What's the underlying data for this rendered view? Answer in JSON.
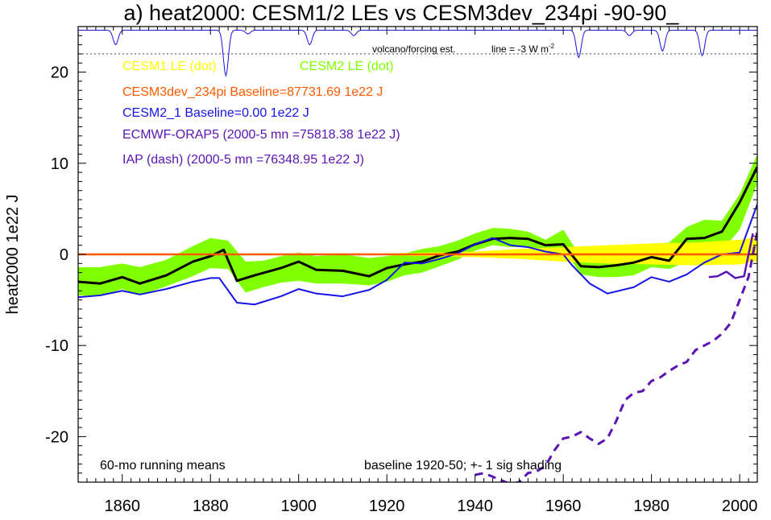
{
  "chart_data": {
    "type": "line",
    "title": "a) heat2000: CESM1/2 LEs vs CESM3dev_234pi -90-90_",
    "ylabel": "heat2000 1e22 J",
    "xlabel": "",
    "xlim": [
      1850,
      2004
    ],
    "ylim": [
      -25,
      25
    ],
    "x_ticks": [
      "1860",
      "1880",
      "1900",
      "1920",
      "1940",
      "1960",
      "1980",
      "2000"
    ],
    "y_ticks": [
      "20",
      "10",
      "0",
      "-10",
      "-20"
    ],
    "grid": false,
    "legend_entries": [
      {
        "label": "CESM1 LE (dot)",
        "color": "#ffff00"
      },
      {
        "label": "CESM2 LE (dot)",
        "color": "#80ff00"
      },
      {
        "label": "CESM3dev_234pi Baseline=87731.69 1e22 J",
        "color": "#ff5a00"
      },
      {
        "label": "CESM2_1 Baseline=0.00 1e22 J",
        "color": "#1414e6"
      },
      {
        "label": "ECMWF-ORAP5 (2000-5 mn =75818.38 1e22 J)",
        "color": "#5a14b4"
      },
      {
        "label": "IAP (dash) (2000-5 mn =76348.95 1e22 J)",
        "color": "#5a14b4"
      }
    ],
    "annotations": {
      "volcano_label": "volcano/forcing est.",
      "line_label": "line = -3 W m",
      "line_label_sup": "-2",
      "running_means": "60-mo running means",
      "baseline_note": "baseline 1920-50; +- 1 sig shading"
    },
    "volcano_ref_y": 22,
    "series": [
      {
        "name": "CESM2 LE (dot)",
        "role": "band",
        "color": "#80ff00",
        "x": [
          1850,
          1855,
          1860,
          1864,
          1870,
          1876,
          1880,
          1884,
          1888,
          1892,
          1896,
          1900,
          1904,
          1910,
          1916,
          1920,
          1924,
          1928,
          1932,
          1936,
          1940,
          1944,
          1948,
          1952,
          1956,
          1960,
          1964,
          1968,
          1972,
          1976,
          1980,
          1984,
          1988,
          1992,
          1996,
          2000,
          2004
        ],
        "lower": [
          -4.5,
          -4.6,
          -3.8,
          -4.5,
          -3.5,
          -2.4,
          -1.5,
          -1.6,
          -4.2,
          -3.6,
          -3.1,
          -2.9,
          -3.2,
          -3.2,
          -3.4,
          -3.0,
          -2.3,
          -2.0,
          -1.3,
          -0.6,
          0.4,
          1.0,
          0.8,
          0.8,
          0.6,
          0.6,
          -2.2,
          -2.5,
          -2.5,
          -2.3,
          -1.4,
          -1.6,
          -0.8,
          0.2,
          0.4,
          2.7,
          7.8
        ],
        "upper": [
          -1.4,
          -1.4,
          -1.0,
          -1.4,
          -0.6,
          0.9,
          1.8,
          1.5,
          -0.8,
          -0.7,
          -0.2,
          0.2,
          -0.2,
          0.0,
          -0.4,
          -0.2,
          0.1,
          0.6,
          0.9,
          1.5,
          2.3,
          2.9,
          2.8,
          2.5,
          1.6,
          2.7,
          -0.3,
          -0.2,
          0.1,
          0.1,
          1.1,
          1.3,
          3.0,
          3.8,
          3.7,
          6.6,
          11.0
        ]
      },
      {
        "name": "CESM1 LE (dot)",
        "role": "band",
        "color": "#ffff00",
        "x": [
          1920,
          1930,
          1940,
          1950,
          1960,
          1970,
          1980,
          1990,
          2000,
          2004
        ],
        "lower": [
          -0.1,
          -0.2,
          -0.3,
          -0.5,
          -0.8,
          -1.0,
          -1.1,
          -1.2,
          -1.1,
          -0.7
        ],
        "upper": [
          0.1,
          0.2,
          0.3,
          0.6,
          0.8,
          1.0,
          1.2,
          1.3,
          1.6,
          1.9
        ]
      },
      {
        "name": "CESM2 LE mean",
        "role": "line",
        "color": "#000000",
        "width": 3,
        "dash": "",
        "x": [
          1850,
          1855,
          1860,
          1864,
          1870,
          1876,
          1880,
          1883,
          1886,
          1890,
          1896,
          1900,
          1904,
          1910,
          1916,
          1920,
          1924,
          1928,
          1932,
          1936,
          1940,
          1944,
          1948,
          1952,
          1956,
          1960,
          1964,
          1968,
          1972,
          1976,
          1980,
          1984,
          1988,
          1992,
          1996,
          2000,
          2004
        ],
        "y": [
          -3.0,
          -3.2,
          -2.5,
          -3.2,
          -2.3,
          -0.8,
          -0.2,
          0.5,
          -2.9,
          -2.3,
          -1.5,
          -0.8,
          -1.7,
          -1.8,
          -2.4,
          -1.5,
          -1.1,
          -0.8,
          -0.1,
          0.3,
          1.1,
          1.7,
          1.8,
          1.7,
          1.0,
          1.1,
          -1.3,
          -1.4,
          -1.2,
          -0.9,
          -0.3,
          -0.7,
          1.7,
          1.8,
          2.5,
          5.7,
          9.6
        ]
      },
      {
        "name": "CESM2_1",
        "role": "line",
        "color": "#1414e6",
        "width": 2,
        "dash": "",
        "x": [
          1850,
          1855,
          1860,
          1864,
          1870,
          1876,
          1880,
          1882,
          1886,
          1890,
          1896,
          1900,
          1904,
          1910,
          1916,
          1920,
          1924,
          1928,
          1932,
          1936,
          1940,
          1944,
          1948,
          1952,
          1956,
          1960,
          1962,
          1966,
          1970,
          1976,
          1980,
          1984,
          1988,
          1992,
          1996,
          2000,
          2004
        ],
        "y": [
          -4.7,
          -4.5,
          -4.0,
          -4.4,
          -3.8,
          -3.0,
          -2.6,
          -2.6,
          -5.3,
          -5.5,
          -4.6,
          -3.8,
          -4.3,
          -4.6,
          -3.9,
          -2.8,
          -0.9,
          -1.0,
          -0.5,
          0.1,
          1.1,
          1.8,
          1.0,
          0.8,
          0.3,
          0.0,
          -1.2,
          -3.2,
          -4.3,
          -3.6,
          -2.5,
          -3.0,
          -2.2,
          -0.9,
          0.0,
          0.2,
          5.5
        ]
      },
      {
        "name": "CESM3dev_234pi",
        "role": "line",
        "color": "#ff5a00",
        "width": 2.5,
        "dash": "",
        "x": [
          1850,
          2004
        ],
        "y": [
          0.0,
          0.0
        ]
      },
      {
        "name": "ECMWF-ORAP5",
        "role": "line",
        "color": "#5a14b4",
        "width": 2.5,
        "dash": "",
        "x": [
          1993,
          1995,
          1997,
          1999,
          2001,
          2003
        ],
        "y": [
          -2.5,
          -2.4,
          -1.9,
          -2.6,
          -2.4,
          2.3
        ]
      },
      {
        "name": "IAP (dash)",
        "role": "line",
        "color": "#5a14b4",
        "width": 3,
        "dash": "10,7",
        "x": [
          1940,
          1942,
          1944,
          1946,
          1948,
          1950,
          1952,
          1954,
          1956,
          1958,
          1960,
          1962,
          1964,
          1966,
          1968,
          1970,
          1972,
          1974,
          1976,
          1978,
          1980,
          1982,
          1984,
          1986,
          1988,
          1990,
          1992,
          1994,
          1996,
          1998,
          2000,
          2002,
          2004
        ],
        "y": [
          -24.2,
          -24.0,
          -24.4,
          -24.8,
          -25.2,
          -25.0,
          -24.0,
          -23.8,
          -23.2,
          -21.5,
          -20.2,
          -20.0,
          -19.5,
          -20.2,
          -20.8,
          -20.2,
          -18.3,
          -16.0,
          -15.2,
          -15.0,
          -13.9,
          -13.5,
          -12.8,
          -12.2,
          -11.8,
          -10.5,
          -10.0,
          -9.5,
          -8.7,
          -7.5,
          -5.0,
          -2.5,
          2.5
        ]
      }
    ],
    "volcano_trace": {
      "color": "#1414e6",
      "baseline": 24.6,
      "dips": [
        {
          "x": 1858.5,
          "depth": 1.6
        },
        {
          "x": 1883.5,
          "depth": 5.0
        },
        {
          "x": 1888.5,
          "depth": 0.4
        },
        {
          "x": 1902.5,
          "depth": 1.6
        },
        {
          "x": 1912.5,
          "depth": 0.6
        },
        {
          "x": 1963.5,
          "depth": 3.0
        },
        {
          "x": 1975.0,
          "depth": 0.6
        },
        {
          "x": 1982.5,
          "depth": 2.3
        },
        {
          "x": 1991.5,
          "depth": 2.8
        }
      ]
    }
  }
}
